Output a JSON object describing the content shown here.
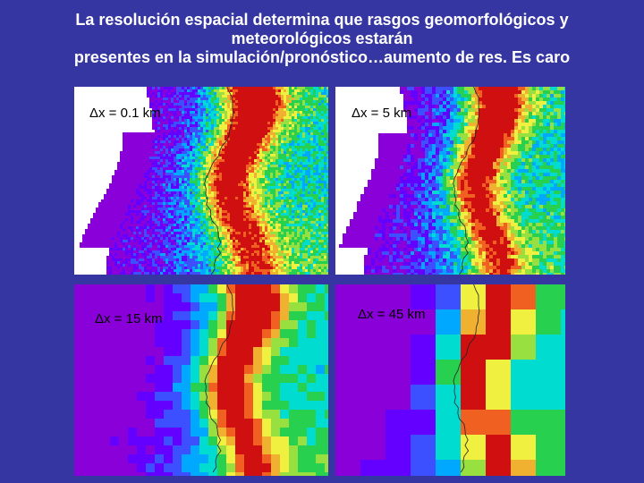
{
  "slide": {
    "title_lines": [
      "La resolución espacial determina que rasgos geomorfológicos y",
      "meteorológicos estarán",
      "presentes en la simulación/pronóstico…aumento de res. Es caro"
    ],
    "panels": [
      {
        "label": "Δx = 0.1 km"
      },
      {
        "label": "Δx = 5 km"
      },
      {
        "label": "Δx = 15 km"
      },
      {
        "label": "Δx = 45 km"
      }
    ]
  }
}
